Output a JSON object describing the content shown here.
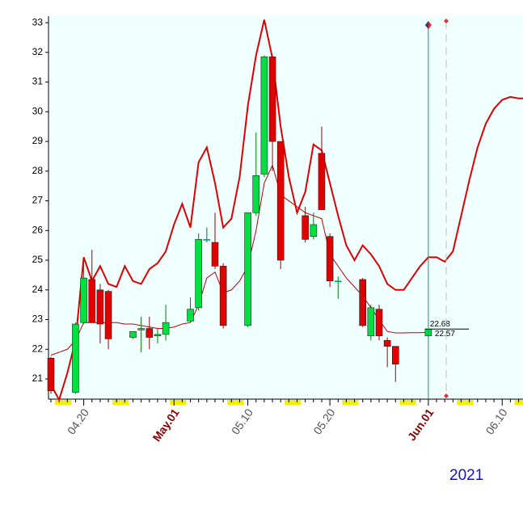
{
  "chart_data": {
    "type": "candlestick",
    "categories": [
      null,
      null,
      null,
      null,
      "04.20",
      null,
      null,
      null,
      null,
      null,
      null,
      null,
      null,
      null,
      null,
      "May.01",
      null,
      null,
      null,
      null,
      null,
      null,
      null,
      null,
      "05.10",
      null,
      null,
      null,
      null,
      null,
      null,
      null,
      null,
      null,
      "05.20",
      null,
      null,
      null,
      null,
      null,
      null,
      null,
      null,
      null,
      null,
      null,
      "Jun.01",
      null,
      null,
      null,
      null,
      null,
      null,
      null,
      null,
      "06.10",
      null,
      null,
      null
    ],
    "open": [
      21.7,
      null,
      null,
      20.55,
      22.9,
      24.35,
      24.0,
      23.95,
      null,
      null,
      22.4,
      22.65,
      22.7,
      22.45,
      22.5,
      null,
      null,
      22.95,
      23.4,
      25.7,
      25.6,
      24.8,
      null,
      null,
      22.8,
      26.6,
      27.9,
      31.85,
      29.0,
      null,
      null,
      26.5,
      25.8,
      28.6,
      25.8,
      24.3,
      null,
      null,
      24.35,
      22.45,
      23.35,
      22.3,
      22.1,
      null,
      null,
      null,
      22.45,
      null,
      null,
      null,
      null,
      null,
      null,
      null,
      null,
      null,
      null,
      null,
      null
    ],
    "high": [
      21.75,
      null,
      null,
      22.9,
      25.1,
      25.35,
      24.2,
      24.0,
      null,
      null,
      22.6,
      23.1,
      23.1,
      22.7,
      23.5,
      null,
      null,
      23.75,
      25.9,
      26.1,
      26.6,
      24.9,
      null,
      null,
      26.6,
      29.3,
      31.9,
      31.9,
      29.0,
      null,
      null,
      26.8,
      26.6,
      29.5,
      25.9,
      24.45,
      null,
      null,
      24.4,
      23.5,
      23.5,
      22.4,
      22.1,
      null,
      null,
      null,
      22.7,
      null,
      null,
      null,
      null,
      null,
      null,
      null,
      null,
      null,
      null,
      null,
      null
    ],
    "low": [
      20.5,
      null,
      null,
      20.5,
      22.85,
      22.9,
      22.2,
      22.0,
      null,
      null,
      22.35,
      21.9,
      22.0,
      22.2,
      22.3,
      null,
      null,
      22.9,
      23.3,
      25.6,
      24.7,
      22.7,
      null,
      null,
      22.75,
      26.5,
      27.8,
      28.0,
      24.7,
      null,
      null,
      25.6,
      25.7,
      26.7,
      24.1,
      23.7,
      null,
      null,
      22.75,
      22.3,
      22.3,
      21.4,
      20.9,
      null,
      null,
      null,
      22.4,
      null,
      null,
      null,
      null,
      null,
      null,
      null,
      null,
      null,
      null,
      null,
      null
    ],
    "close": [
      20.6,
      null,
      null,
      22.85,
      24.4,
      22.9,
      22.85,
      22.35,
      null,
      null,
      22.6,
      22.7,
      22.4,
      22.5,
      22.9,
      null,
      null,
      23.35,
      25.7,
      25.7,
      24.8,
      22.8,
      null,
      null,
      26.6,
      27.85,
      31.85,
      29.0,
      25.0,
      null,
      null,
      25.7,
      26.2,
      26.7,
      24.3,
      24.3,
      null,
      null,
      22.8,
      23.4,
      22.45,
      22.1,
      21.5,
      null,
      null,
      null,
      22.68,
      null,
      null,
      null,
      null,
      null,
      null,
      null,
      null,
      null,
      null,
      null,
      null
    ],
    "up_color": "#00e040",
    "down_color": "#e00000",
    "lines": [
      {
        "color": "#e00000",
        "width": 2,
        "values": [
          20.8,
          20.3,
          21.2,
          22.3,
          25.1,
          24.3,
          24.8,
          24.2,
          24.1,
          24.8,
          24.3,
          24.2,
          24.7,
          24.9,
          25.3,
          26.2,
          26.9,
          26.1,
          28.3,
          28.8,
          27.6,
          26.1,
          26.4,
          27.8,
          30.2,
          31.9,
          33.1,
          31.8,
          29.5,
          27.8,
          26.6,
          27.3,
          28.9,
          28.7,
          27.6,
          26.5,
          25.5,
          25.0,
          25.5,
          25.2,
          24.8,
          24.2,
          24.0,
          24.0,
          24.4,
          24.8,
          25.1,
          25.1,
          24.95,
          25.3,
          26.5,
          27.7,
          28.8,
          29.6,
          30.1,
          30.4,
          30.5,
          30.45,
          30.45
        ]
      },
      {
        "color": "#c00000",
        "width": 1,
        "values": [
          21.8,
          21.9,
          22.0,
          22.3,
          22.9,
          22.9,
          22.9,
          22.9,
          22.9,
          22.85,
          22.85,
          22.8,
          22.75,
          22.7,
          22.7,
          22.75,
          22.85,
          22.9,
          23.5,
          24.4,
          24.6,
          23.9,
          24.0,
          24.3,
          24.8,
          26.0,
          27.6,
          28.2,
          27.2,
          27.0,
          26.8,
          26.6,
          26.5,
          26.4,
          25.2,
          24.8,
          24.4,
          24.1,
          23.8,
          23.4,
          23.0,
          22.6,
          22.55,
          22.55,
          22.56,
          22.56,
          22.57,
          null,
          null,
          null,
          null,
          null,
          null,
          null,
          null,
          null,
          null,
          null,
          null
        ]
      }
    ],
    "last_close_label": "22.68",
    "last_line_label": "22.57",
    "year_label": "2021",
    "ylim": [
      20.32,
      33.22
    ],
    "yticks": [
      21,
      22,
      23,
      24,
      25,
      26,
      27,
      28,
      29,
      30,
      31,
      32,
      33
    ]
  }
}
